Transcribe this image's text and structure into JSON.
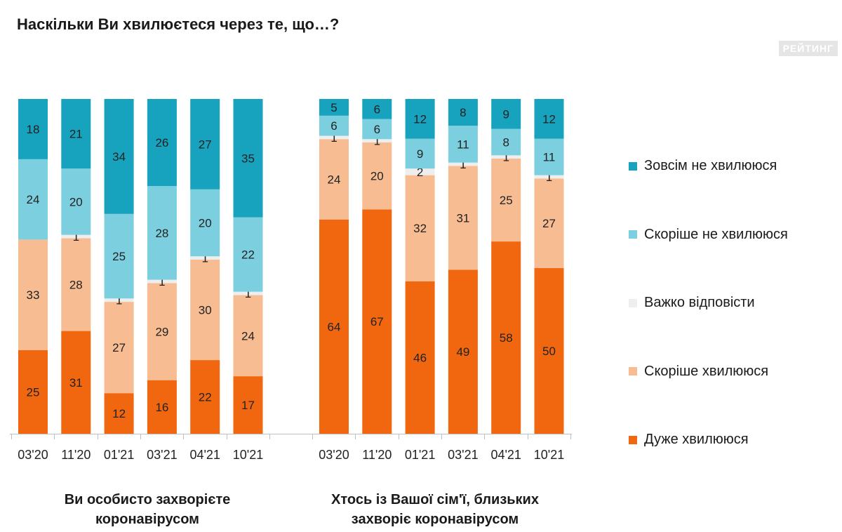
{
  "header": {
    "title": "Наскільки Ви хвилюєтеся через те, що…?",
    "brand": "РЕЙТИНГ"
  },
  "colors": {
    "zovsim_ne": "#17a2bd",
    "skorishe_ne": "#7ccfdf",
    "vazhko": "#eeeeee",
    "skorishe": "#f7bc91",
    "duzhe": "#f0670f"
  },
  "chart_data": [
    {
      "type": "bar",
      "stacked": true,
      "title": "Ви особисто захворієте коронавірусом",
      "categories": [
        "03'20",
        "11'20",
        "01'21",
        "03'21",
        "04'21",
        "10'21"
      ],
      "series": [
        {
          "name": "Дуже хвилююся",
          "values": [
            25,
            31,
            12,
            16,
            22,
            17
          ]
        },
        {
          "name": "Скоріше хвилююся",
          "values": [
            33,
            28,
            27,
            29,
            30,
            24
          ]
        },
        {
          "name": "Важко відповісти",
          "values": [
            0,
            1,
            1,
            1,
            1,
            1
          ]
        },
        {
          "name": "Скоріше не хвилююся",
          "values": [
            24,
            20,
            25,
            28,
            20,
            22
          ]
        },
        {
          "name": "Зовсім не хвилююся",
          "values": [
            18,
            21,
            34,
            26,
            27,
            35
          ]
        }
      ],
      "ylim": [
        0,
        100
      ]
    },
    {
      "type": "bar",
      "stacked": true,
      "title": "Хтось із Вашої сім'ї, близьких захворіє коронавірусом",
      "categories": [
        "03'20",
        "11'20",
        "01'21",
        "03'21",
        "04'21",
        "10'21"
      ],
      "series": [
        {
          "name": "Дуже хвилююся",
          "values": [
            64,
            67,
            46,
            49,
            58,
            50
          ]
        },
        {
          "name": "Скоріше хвилююся",
          "values": [
            24,
            20,
            32,
            31,
            25,
            27
          ]
        },
        {
          "name": "Важко відповісти",
          "values": [
            1,
            1,
            2,
            1,
            1,
            1
          ]
        },
        {
          "name": "Скоріше не хвилююся",
          "values": [
            6,
            6,
            9,
            11,
            8,
            11
          ]
        },
        {
          "name": "Зовсім не хвилююся",
          "values": [
            5,
            6,
            12,
            8,
            9,
            12
          ]
        }
      ],
      "ylim": [
        0,
        100
      ]
    }
  ],
  "legend": [
    {
      "label": "Зовсім не хвилююся",
      "color": "#17a2bd"
    },
    {
      "label": "Скоріше не хвилююся",
      "color": "#7ccfdf"
    },
    {
      "label": "Важко відповісти",
      "color": "#eeeeee"
    },
    {
      "label": "Скоріше хвилююся",
      "color": "#f7bc91"
    },
    {
      "label": "Дуже хвилююся",
      "color": "#f0670f"
    }
  ],
  "groups": {
    "left_label_line1": "Ви особисто захворієте",
    "left_label_line2": "коронавірусом",
    "right_label_line1": "Хтось із Вашої сім'ї, близьких",
    "right_label_line2": "захворіє коронавірусом"
  }
}
